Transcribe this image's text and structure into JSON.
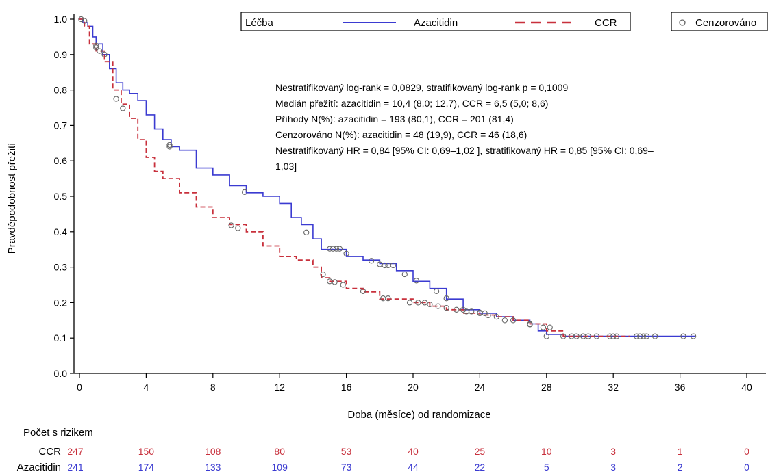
{
  "chart_data": {
    "type": "line",
    "subtype": "kaplan-meier",
    "xlabel": "Doba (měsíce) od randomizace",
    "ylabel": "Pravděpodobnost přežití",
    "xlim": [
      0,
      40
    ],
    "ylim": [
      0,
      1.0
    ],
    "x_ticks": [
      "0",
      "4",
      "8",
      "12",
      "16",
      "20",
      "24",
      "28",
      "32",
      "36",
      "40"
    ],
    "y_ticks": [
      "0.0",
      "0.1",
      "0.2",
      "0.3",
      "0.4",
      "0.5",
      "0.6",
      "0.7",
      "0.8",
      "0.9",
      "1.0"
    ],
    "grid": false,
    "legend": {
      "title": "Léčba",
      "placement": "top",
      "censor_label": "Cenzorováno",
      "entries": [
        {
          "label": "Azacitidin",
          "color": "#3b3bd1",
          "dash": "solid"
        },
        {
          "label": "CCR",
          "color": "#c8303c",
          "dash": "dashed"
        }
      ]
    },
    "annotation_lines": [
      "Nestratifikovaný log-rank = 0,0829, stratifikovaný log-rank p = 0,1009",
      "Medián přežití: azacitidin = 10,4 (8,0; 12,7), CCR = 6,5 (5,0; 8,6)",
      "Příhody N(%): azacitidin = 193 (80,1), CCR = 201 (81,4)",
      "Cenzorováno N(%): azacitidin = 48 (19,9), CCR = 46 (18,6)",
      "Nestratifikovaný HR = 0,84 [95% CI: 0,69–1,02 ], stratifikovaný HR = 0,85 [95% CI: 0,69–",
      "1,03]"
    ],
    "series": [
      {
        "name": "Azacitidin",
        "color": "#3b3bd1",
        "points": [
          [
            0,
            1.0
          ],
          [
            0.2,
            0.99
          ],
          [
            0.5,
            0.98
          ],
          [
            0.8,
            0.95
          ],
          [
            1.0,
            0.93
          ],
          [
            1.4,
            0.9
          ],
          [
            1.8,
            0.86
          ],
          [
            2.2,
            0.82
          ],
          [
            2.6,
            0.8
          ],
          [
            3.0,
            0.79
          ],
          [
            3.5,
            0.77
          ],
          [
            4.0,
            0.73
          ],
          [
            4.5,
            0.69
          ],
          [
            5.0,
            0.66
          ],
          [
            5.5,
            0.64
          ],
          [
            6.0,
            0.63
          ],
          [
            7.0,
            0.58
          ],
          [
            8.0,
            0.56
          ],
          [
            9.0,
            0.53
          ],
          [
            10.0,
            0.51
          ],
          [
            11.0,
            0.5
          ],
          [
            12.0,
            0.48
          ],
          [
            12.7,
            0.44
          ],
          [
            13.3,
            0.42
          ],
          [
            14.0,
            0.38
          ],
          [
            14.5,
            0.35
          ],
          [
            15.5,
            0.35
          ],
          [
            16.0,
            0.33
          ],
          [
            17.0,
            0.32
          ],
          [
            18.0,
            0.31
          ],
          [
            19.0,
            0.29
          ],
          [
            20.0,
            0.26
          ],
          [
            21.0,
            0.24
          ],
          [
            22.0,
            0.21
          ],
          [
            23.0,
            0.18
          ],
          [
            24.0,
            0.17
          ],
          [
            25.0,
            0.16
          ],
          [
            26.0,
            0.15
          ],
          [
            27.0,
            0.14
          ],
          [
            27.5,
            0.12
          ],
          [
            28.0,
            0.11
          ],
          [
            29.0,
            0.105
          ],
          [
            32.0,
            0.105
          ],
          [
            36.9,
            0.105
          ]
        ],
        "censored": [
          [
            0.3,
            0.995
          ],
          [
            1.0,
            0.92
          ],
          [
            1.2,
            0.91
          ],
          [
            1.5,
            0.9
          ],
          [
            5.4,
            0.645
          ],
          [
            9.9,
            0.512
          ],
          [
            13.6,
            0.398
          ],
          [
            15.0,
            0.352
          ],
          [
            15.2,
            0.352
          ],
          [
            15.4,
            0.352
          ],
          [
            15.6,
            0.352
          ],
          [
            16.0,
            0.338
          ],
          [
            17.5,
            0.318
          ],
          [
            18.0,
            0.308
          ],
          [
            18.3,
            0.305
          ],
          [
            18.5,
            0.305
          ],
          [
            18.8,
            0.305
          ],
          [
            19.5,
            0.28
          ],
          [
            20.2,
            0.262
          ],
          [
            21.4,
            0.232
          ],
          [
            22.0,
            0.212
          ],
          [
            23.0,
            0.18
          ],
          [
            24.0,
            0.172
          ],
          [
            24.5,
            0.164
          ],
          [
            25.5,
            0.15
          ],
          [
            27.0,
            0.138
          ],
          [
            28.0,
            0.105
          ],
          [
            29.5,
            0.105
          ],
          [
            30.2,
            0.105
          ],
          [
            30.5,
            0.105
          ],
          [
            31.0,
            0.105
          ],
          [
            32.0,
            0.105
          ],
          [
            33.6,
            0.105
          ],
          [
            34.0,
            0.105
          ],
          [
            34.5,
            0.105
          ],
          [
            36.2,
            0.105
          ],
          [
            36.8,
            0.105
          ]
        ]
      },
      {
        "name": "CCR",
        "color": "#c8303c",
        "points": [
          [
            0,
            1.0
          ],
          [
            0.3,
            0.98
          ],
          [
            0.6,
            0.93
          ],
          [
            1.0,
            0.91
          ],
          [
            1.5,
            0.88
          ],
          [
            2.0,
            0.8
          ],
          [
            2.5,
            0.76
          ],
          [
            3.0,
            0.72
          ],
          [
            3.5,
            0.66
          ],
          [
            4.0,
            0.61
          ],
          [
            4.5,
            0.57
          ],
          [
            5.0,
            0.55
          ],
          [
            6.0,
            0.51
          ],
          [
            7.0,
            0.47
          ],
          [
            8.0,
            0.44
          ],
          [
            9.0,
            0.42
          ],
          [
            10.0,
            0.4
          ],
          [
            11.0,
            0.36
          ],
          [
            12.0,
            0.33
          ],
          [
            13.0,
            0.32
          ],
          [
            14.0,
            0.3
          ],
          [
            14.5,
            0.27
          ],
          [
            15.0,
            0.26
          ],
          [
            16.0,
            0.24
          ],
          [
            17.0,
            0.23
          ],
          [
            18.0,
            0.21
          ],
          [
            19.0,
            0.21
          ],
          [
            20.0,
            0.2
          ],
          [
            21.0,
            0.19
          ],
          [
            22.0,
            0.18
          ],
          [
            23.0,
            0.17
          ],
          [
            24.0,
            0.165
          ],
          [
            25.0,
            0.16
          ],
          [
            26.0,
            0.15
          ],
          [
            27.0,
            0.14
          ],
          [
            28.0,
            0.12
          ],
          [
            29.0,
            0.105
          ],
          [
            33.0,
            0.105
          ]
        ],
        "censored": [
          [
            0.1,
            1.0
          ],
          [
            1.0,
            0.925
          ],
          [
            2.2,
            0.775
          ],
          [
            2.6,
            0.748
          ],
          [
            5.4,
            0.64
          ],
          [
            9.1,
            0.418
          ],
          [
            9.5,
            0.41
          ],
          [
            14.6,
            0.28
          ],
          [
            15.0,
            0.26
          ],
          [
            15.3,
            0.258
          ],
          [
            15.8,
            0.25
          ],
          [
            17.0,
            0.232
          ],
          [
            18.2,
            0.212
          ],
          [
            18.5,
            0.212
          ],
          [
            19.8,
            0.2
          ],
          [
            20.3,
            0.2
          ],
          [
            20.7,
            0.2
          ],
          [
            21.0,
            0.195
          ],
          [
            21.5,
            0.19
          ],
          [
            22.0,
            0.185
          ],
          [
            22.6,
            0.18
          ],
          [
            23.2,
            0.175
          ],
          [
            23.5,
            0.175
          ],
          [
            24.0,
            0.17
          ],
          [
            24.3,
            0.17
          ],
          [
            25.0,
            0.16
          ],
          [
            26.0,
            0.15
          ],
          [
            27.0,
            0.14
          ],
          [
            27.8,
            0.13
          ],
          [
            28.2,
            0.13
          ],
          [
            29.0,
            0.105
          ],
          [
            29.8,
            0.105
          ],
          [
            30.2,
            0.105
          ],
          [
            31.8,
            0.105
          ],
          [
            32.2,
            0.105
          ],
          [
            33.4,
            0.105
          ],
          [
            33.8,
            0.105
          ]
        ]
      }
    ],
    "risk_table": {
      "title": "Počet s rizikem",
      "rows": [
        {
          "label": "CCR",
          "color": "#c8303c",
          "values": [
            "247",
            "150",
            "108",
            "80",
            "53",
            "40",
            "25",
            "10",
            "3",
            "1",
            "0"
          ]
        },
        {
          "label": "Azacitidin",
          "color": "#3b3bd1",
          "values": [
            "241",
            "174",
            "133",
            "109",
            "73",
            "44",
            "22",
            "5",
            "3",
            "2",
            "0"
          ]
        }
      ]
    }
  }
}
